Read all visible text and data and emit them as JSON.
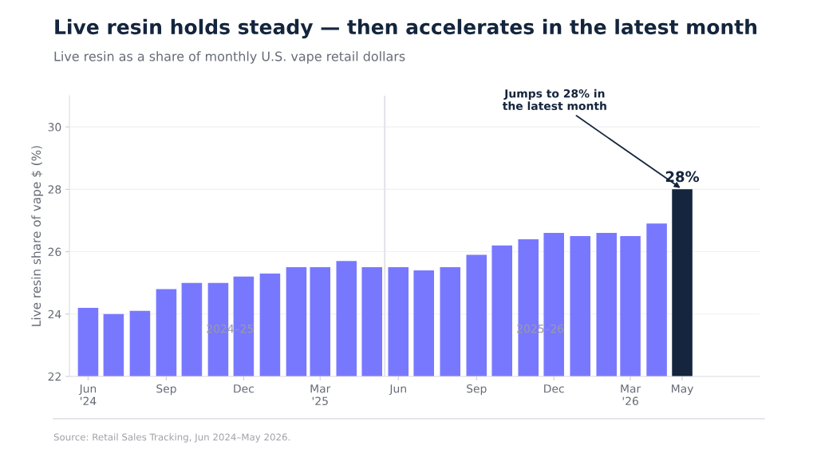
{
  "chart_data": {
    "type": "bar",
    "title": "Live resin holds steady — then accelerates in the latest month",
    "subtitle": "Live resin as a share of monthly U.S. vape retail dollars",
    "ylabel": "Live resin share of vape $ (%)",
    "x": [
      "2024-06",
      "2024-07",
      "2024-08",
      "2024-09",
      "2024-10",
      "2024-11",
      "2024-12",
      "2025-01",
      "2025-02",
      "2025-03",
      "2025-04",
      "2025-05",
      "2025-06",
      "2025-07",
      "2025-08",
      "2025-09",
      "2025-10",
      "2025-11",
      "2025-12",
      "2026-01",
      "2026-02",
      "2026-03",
      "2026-04",
      "2026-05"
    ],
    "values": [
      24.2,
      24.0,
      24.1,
      24.8,
      25.0,
      25.0,
      25.2,
      25.3,
      25.5,
      25.5,
      25.7,
      25.5,
      25.5,
      25.4,
      25.5,
      25.9,
      26.2,
      26.4,
      26.6,
      26.5,
      26.6,
      26.5,
      26.9,
      28.0
    ],
    "colors": [
      "#7878ff",
      "#7878ff",
      "#7878ff",
      "#7878ff",
      "#7878ff",
      "#7878ff",
      "#7878ff",
      "#7878ff",
      "#7878ff",
      "#7878ff",
      "#7878ff",
      "#7878ff",
      "#7878ff",
      "#7878ff",
      "#7878ff",
      "#7878ff",
      "#7878ff",
      "#7878ff",
      "#7878ff",
      "#7878ff",
      "#7878ff",
      "#7878ff",
      "#7878ff",
      "#14253d"
    ],
    "value_labels": [
      null,
      null,
      null,
      null,
      null,
      null,
      null,
      null,
      null,
      null,
      null,
      null,
      null,
      null,
      null,
      null,
      null,
      null,
      null,
      null,
      null,
      null,
      null,
      "28%"
    ],
    "xlim": [
      "2024-05-10",
      "2026-07-31"
    ],
    "xticks": [
      {
        "value": "2024-06",
        "label": "Jun\n'24"
      },
      {
        "value": "2024-09",
        "label": "Sep"
      },
      {
        "value": "2024-12",
        "label": "Dec"
      },
      {
        "value": "2025-03",
        "label": "Mar\n'25"
      },
      {
        "value": "2025-06",
        "label": "Jun"
      },
      {
        "value": "2025-09",
        "label": "Sep"
      },
      {
        "value": "2025-12",
        "label": "Dec"
      },
      {
        "value": "2026-03",
        "label": "Mar\n'26"
      },
      {
        "value": "2026-05",
        "label": "May"
      }
    ],
    "ylim": [
      22,
      31
    ],
    "yticks": [
      22,
      24,
      26,
      28,
      30
    ],
    "grid": "y",
    "ref_lines": [
      {
        "axis": "x",
        "value": "2025-05-16",
        "label": null,
        "color": "#e3e3ea"
      }
    ],
    "annotations": [
      {
        "text": "Jumps to 28% in\nthe latest month",
        "x": "2026-05",
        "y": 28
      },
      {
        "text": "2024–25",
        "x": "2024-11-15",
        "y": 23.5
      },
      {
        "text": "2025–26",
        "x": "2025-11-15",
        "y": 23.5
      },
      "Source: Retail Sales Tracking, Jun 2024–May 2026."
    ]
  }
}
